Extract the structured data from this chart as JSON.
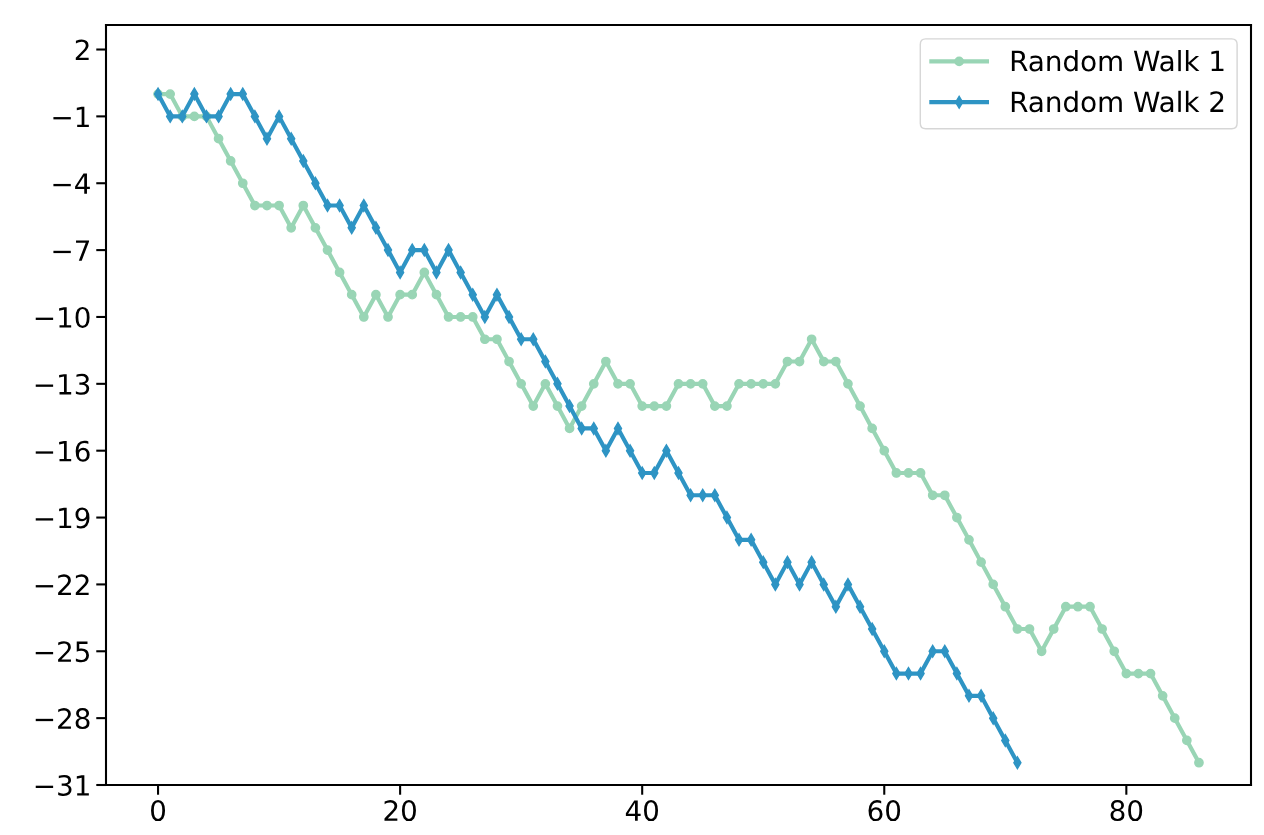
{
  "chart_data": {
    "type": "line",
    "series": [
      {
        "name": "Random Walk 1",
        "color": "#99d5b5",
        "marker": "circle",
        "x": [
          0,
          1,
          2,
          3,
          4,
          5,
          6,
          7,
          8,
          9,
          10,
          11,
          12,
          13,
          14,
          15,
          16,
          17,
          18,
          19,
          20,
          21,
          22,
          23,
          24,
          25,
          26,
          27,
          28,
          29,
          30,
          31,
          32,
          33,
          34,
          35,
          36,
          37,
          38,
          39,
          40,
          41,
          42,
          43,
          44,
          45,
          46,
          47,
          48,
          49,
          50,
          51,
          52,
          53,
          54,
          55,
          56,
          57,
          58,
          59,
          60,
          61,
          62,
          63,
          64,
          65,
          66,
          67,
          68,
          69,
          70,
          71,
          72,
          73,
          74,
          75,
          76,
          77,
          78,
          79,
          80,
          81,
          82,
          83,
          84,
          85,
          86
        ],
        "values": [
          0,
          0,
          -1,
          -1,
          -1,
          -2,
          -3,
          -4,
          -5,
          -5,
          -5,
          -6,
          -5,
          -6,
          -7,
          -8,
          -9,
          -10,
          -9,
          -10,
          -9,
          -9,
          -8,
          -9,
          -10,
          -10,
          -10,
          -11,
          -11,
          -12,
          -13,
          -14,
          -13,
          -14,
          -15,
          -14,
          -13,
          -12,
          -13,
          -13,
          -14,
          -14,
          -14,
          -13,
          -13,
          -13,
          -14,
          -14,
          -13,
          -13,
          -13,
          -13,
          -12,
          -12,
          -11,
          -12,
          -12,
          -13,
          -14,
          -15,
          -16,
          -17,
          -17,
          -17,
          -18,
          -18,
          -19,
          -20,
          -21,
          -22,
          -23,
          -24,
          -24,
          -25,
          -24,
          -23,
          -23,
          -23,
          -24,
          -25,
          -26,
          -26,
          -26,
          -27,
          -28,
          -29,
          -30
        ]
      },
      {
        "name": "Random Walk 2",
        "color": "#2e94c4",
        "marker": "diamond",
        "x": [
          0,
          1,
          2,
          3,
          4,
          5,
          6,
          7,
          8,
          9,
          10,
          11,
          12,
          13,
          14,
          15,
          16,
          17,
          18,
          19,
          20,
          21,
          22,
          23,
          24,
          25,
          26,
          27,
          28,
          29,
          30,
          31,
          32,
          33,
          34,
          35,
          36,
          37,
          38,
          39,
          40,
          41,
          42,
          43,
          44,
          45,
          46,
          47,
          48,
          49,
          50,
          51,
          52,
          53,
          54,
          55,
          56,
          57,
          58,
          59,
          60,
          61,
          62,
          63,
          64,
          65,
          66,
          67,
          68,
          69,
          70,
          71
        ],
        "values": [
          0,
          -1,
          -1,
          0,
          -1,
          -1,
          0,
          0,
          -1,
          -2,
          -1,
          -2,
          -3,
          -4,
          -5,
          -5,
          -6,
          -5,
          -6,
          -7,
          -8,
          -7,
          -7,
          -8,
          -7,
          -8,
          -9,
          -10,
          -9,
          -10,
          -11,
          -11,
          -12,
          -13,
          -14,
          -15,
          -15,
          -16,
          -15,
          -16,
          -17,
          -17,
          -16,
          -17,
          -18,
          -18,
          -18,
          -19,
          -20,
          -20,
          -21,
          -22,
          -21,
          -22,
          -21,
          -22,
          -23,
          -22,
          -23,
          -24,
          -25,
          -26,
          -26,
          -26,
          -25,
          -25,
          -26,
          -27,
          -27,
          -28,
          -29,
          -30
        ]
      }
    ],
    "xlim": [
      -4.3,
      90.3
    ],
    "xticks": [
      0,
      20,
      40,
      60,
      80
    ],
    "ylim": [
      -31,
      3.1
    ],
    "yticks": [
      2,
      -1,
      -4,
      -7,
      -10,
      -13,
      -16,
      -19,
      -22,
      -25,
      -28,
      -31
    ],
    "grid": false,
    "legend": "top right",
    "line_style": "solid"
  }
}
